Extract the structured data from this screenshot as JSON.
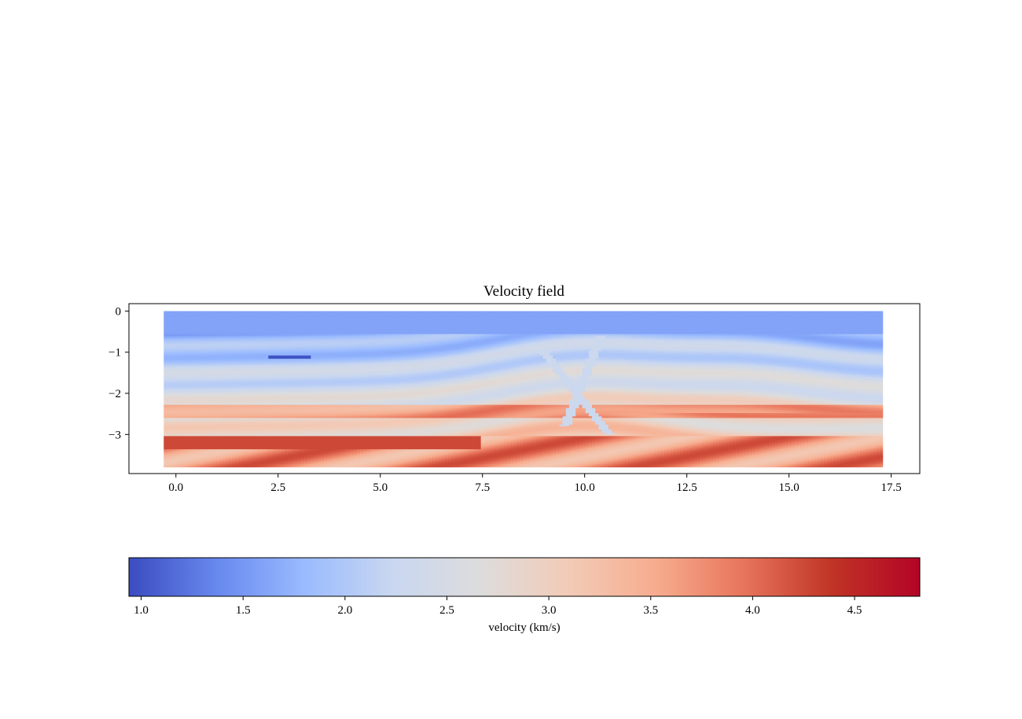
{
  "chart_data": {
    "type": "heatmap",
    "title": "Velocity field",
    "xlabel": "",
    "ylabel": "",
    "xlim": [
      -1.15,
      18.2
    ],
    "ylim": [
      -3.95,
      0.18
    ],
    "extent": {
      "x": [
        -0.3,
        17.3
      ],
      "y": [
        -3.8,
        0.0
      ]
    },
    "xticks": [
      0.0,
      2.5,
      5.0,
      7.5,
      10.0,
      12.5,
      15.0,
      17.5
    ],
    "xtick_labels": [
      "0.0",
      "2.5",
      "5.0",
      "7.5",
      "10.0",
      "12.5",
      "15.0",
      "17.5"
    ],
    "yticks": [
      0,
      -1,
      -2,
      -3
    ],
    "ytick_labels": [
      "0",
      "−1",
      "−2",
      "−3"
    ],
    "colormap": "coolwarm",
    "grid": false,
    "colorbar": {
      "orientation": "horizontal",
      "label": "velocity (km/s)",
      "range": [
        0.94,
        4.82
      ],
      "ticks": [
        1.0,
        1.5,
        2.0,
        2.5,
        3.0,
        3.5,
        4.0,
        4.5
      ],
      "tick_labels": [
        "1.0",
        "1.5",
        "2.0",
        "2.5",
        "3.0",
        "3.5",
        "4.0",
        "4.5"
      ],
      "colors": [
        "#3b4cc0",
        "#6788ee",
        "#9abbff",
        "#c9d7f0",
        "#dddcdc",
        "#f2cbb7",
        "#f7ac8e",
        "#e7745b",
        "#c03426",
        "#b40426"
      ]
    }
  }
}
